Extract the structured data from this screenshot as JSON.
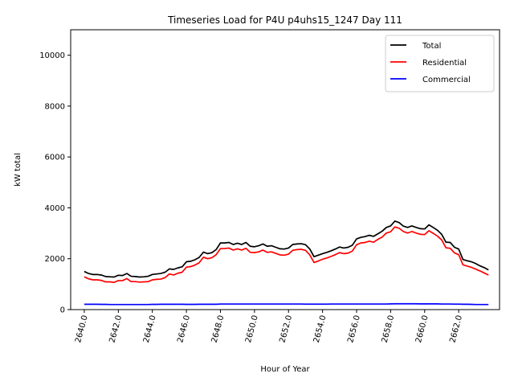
{
  "chart_data": {
    "type": "line",
    "title": "Timeseries Load for P4U p4uhs15_1247  Day 111",
    "xlabel": "Hour of Year",
    "ylabel": "kW total",
    "xlim": [
      2639.2,
      2664.4
    ],
    "ylim": [
      0,
      11000
    ],
    "xticks": [
      2640,
      2642,
      2644,
      2646,
      2648,
      2650,
      2652,
      2654,
      2656,
      2658,
      2660,
      2662
    ],
    "xtick_labels": [
      "2640.0",
      "2642.0",
      "2644.0",
      "2646.0",
      "2648.0",
      "2650.0",
      "2652.0",
      "2654.0",
      "2656.0",
      "2658.0",
      "2660.0",
      "2662.0"
    ],
    "yticks": [
      0,
      2000,
      4000,
      6000,
      8000,
      10000
    ],
    "ytick_labels": [
      "0",
      "2000",
      "4000",
      "6000",
      "8000",
      "10000"
    ],
    "legend_position": "top-right",
    "x": [
      2640.0,
      2640.25,
      2640.5,
      2640.75,
      2641.0,
      2641.25,
      2641.5,
      2641.75,
      2642.0,
      2642.25,
      2642.5,
      2642.75,
      2643.0,
      2643.25,
      2643.5,
      2643.75,
      2644.0,
      2644.25,
      2644.5,
      2644.75,
      2645.0,
      2645.25,
      2645.5,
      2645.75,
      2646.0,
      2646.25,
      2646.5,
      2646.75,
      2647.0,
      2647.25,
      2647.5,
      2647.75,
      2648.0,
      2648.25,
      2648.5,
      2648.75,
      2649.0,
      2649.25,
      2649.5,
      2649.75,
      2650.0,
      2650.25,
      2650.5,
      2650.75,
      2651.0,
      2651.25,
      2651.5,
      2651.75,
      2652.0,
      2652.25,
      2652.5,
      2652.75,
      2653.0,
      2653.25,
      2653.5,
      2653.75,
      2654.0,
      2654.25,
      2654.5,
      2654.75,
      2655.0,
      2655.25,
      2655.5,
      2655.75,
      2656.0,
      2656.25,
      2656.5,
      2656.75,
      2657.0,
      2657.25,
      2657.5,
      2657.75,
      2658.0,
      2658.25,
      2658.5,
      2658.75,
      2659.0,
      2659.25,
      2659.5,
      2659.75,
      2660.0,
      2660.25,
      2660.5,
      2660.75,
      2661.0,
      2661.25,
      2661.5,
      2661.75,
      2662.0,
      2662.25,
      2662.5,
      2662.75,
      2663.0,
      2663.25,
      2663.5,
      2663.75
    ],
    "series": [
      {
        "name": "Total",
        "color": "#000000",
        "values": [
          1500,
          1420,
          1380,
          1380,
          1360,
          1300,
          1290,
          1280,
          1350,
          1340,
          1420,
          1310,
          1300,
          1280,
          1290,
          1310,
          1380,
          1400,
          1420,
          1470,
          1600,
          1580,
          1640,
          1680,
          1880,
          1900,
          1960,
          2050,
          2260,
          2200,
          2240,
          2360,
          2620,
          2620,
          2640,
          2560,
          2610,
          2560,
          2640,
          2490,
          2470,
          2510,
          2580,
          2490,
          2510,
          2450,
          2390,
          2380,
          2420,
          2560,
          2580,
          2590,
          2550,
          2380,
          2080,
          2140,
          2200,
          2250,
          2310,
          2380,
          2460,
          2420,
          2450,
          2530,
          2780,
          2840,
          2870,
          2920,
          2880,
          2980,
          3080,
          3230,
          3290,
          3480,
          3420,
          3280,
          3230,
          3290,
          3230,
          3180,
          3170,
          3330,
          3230,
          3120,
          2960,
          2650,
          2640,
          2450,
          2380,
          1970,
          1920,
          1880,
          1810,
          1720,
          1650,
          1560
        ]
      },
      {
        "name": "Residential",
        "color": "#ff0000",
        "values": [
          1290,
          1210,
          1170,
          1170,
          1150,
          1090,
          1090,
          1070,
          1140,
          1140,
          1220,
          1100,
          1100,
          1080,
          1090,
          1100,
          1170,
          1190,
          1200,
          1260,
          1400,
          1360,
          1430,
          1470,
          1670,
          1690,
          1750,
          1840,
          2060,
          2000,
          2040,
          2160,
          2400,
          2400,
          2420,
          2340,
          2390,
          2340,
          2410,
          2250,
          2240,
          2270,
          2340,
          2250,
          2270,
          2210,
          2150,
          2140,
          2180,
          2330,
          2360,
          2370,
          2330,
          2150,
          1850,
          1910,
          1980,
          2030,
          2090,
          2160,
          2240,
          2200,
          2220,
          2300,
          2550,
          2620,
          2640,
          2690,
          2650,
          2760,
          2850,
          3010,
          3060,
          3250,
          3200,
          3070,
          3010,
          3070,
          3010,
          2960,
          2950,
          3100,
          3000,
          2890,
          2740,
          2430,
          2410,
          2230,
          2160,
          1760,
          1710,
          1660,
          1590,
          1520,
          1440,
          1360
        ]
      },
      {
        "name": "Commercial",
        "color": "#0000ff",
        "values": [
          210,
          210,
          210,
          210,
          205,
          205,
          200,
          200,
          200,
          200,
          200,
          200,
          200,
          200,
          200,
          200,
          205,
          205,
          210,
          210,
          210,
          210,
          210,
          210,
          205,
          205,
          205,
          210,
          210,
          210,
          210,
          210,
          220,
          220,
          220,
          220,
          220,
          220,
          220,
          220,
          220,
          220,
          220,
          220,
          220,
          220,
          220,
          220,
          220,
          220,
          220,
          220,
          215,
          215,
          215,
          215,
          215,
          215,
          220,
          220,
          220,
          220,
          220,
          220,
          220,
          220,
          220,
          220,
          220,
          220,
          220,
          220,
          225,
          230,
          230,
          230,
          230,
          230,
          230,
          225,
          225,
          225,
          225,
          225,
          220,
          220,
          220,
          215,
          215,
          210,
          210,
          205,
          200,
          200,
          200,
          200
        ]
      }
    ]
  }
}
